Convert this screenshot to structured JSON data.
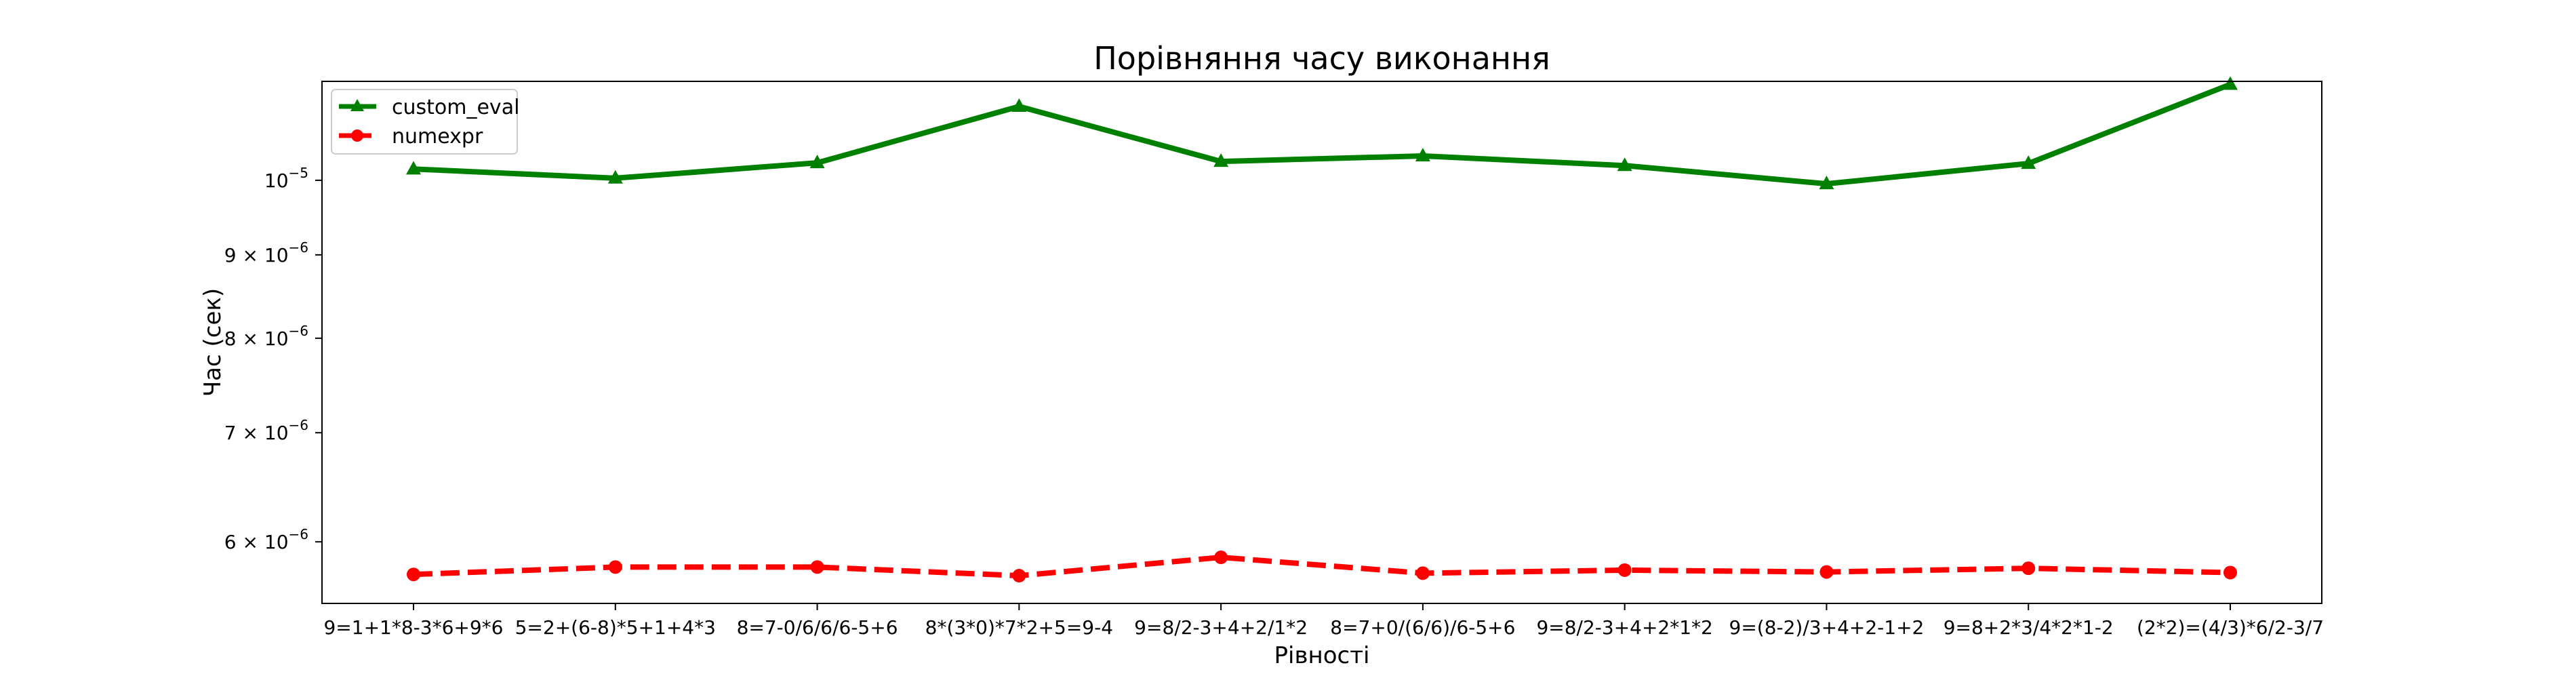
{
  "chart_data": {
    "type": "line",
    "title": "Порівняння часу виконання",
    "xlabel": "Рівності",
    "ylabel": "Час (сек)",
    "yscale": "log",
    "ylim": [
      5.5e-06,
      1.15e-05
    ],
    "grid": false,
    "legend_position": "top-left",
    "categories": [
      "9=1+1*8-3*6+9*6",
      "5=2+(6-8)*5+1+4*3",
      "8=7-0/6/6/6-5+6",
      "8*(3*0)*7*2+5=9-4",
      "9=8/2-3+4+2/1*2",
      "8=7+0/(6/6)/6-5+6",
      "9=8/2-3+4+2*1*2",
      "9=(8-2)/3+4+2-1+2",
      "9=8+2*3/4*2*1-2",
      "(2*2)=(4/3)*6/2-3/7"
    ],
    "series": [
      {
        "name": "custom_eval",
        "color": "#008000",
        "marker": "triangle",
        "linestyle": "solid",
        "values": [
          1.016e-05,
          1.003e-05,
          1.025e-05,
          1.11e-05,
          1.027e-05,
          1.035e-05,
          1.021e-05,
          9.95e-06,
          1.024e-05,
          1.145e-05
        ]
      },
      {
        "name": "numexpr",
        "color": "#ff0000",
        "marker": "circle",
        "linestyle": "dashed",
        "values": [
          5.73e-06,
          5.79e-06,
          5.79e-06,
          5.72e-06,
          5.87e-06,
          5.74e-06,
          5.765e-06,
          5.75e-06,
          5.78e-06,
          5.745e-06
        ]
      }
    ],
    "yticks": [
      {
        "value": 6e-06,
        "mantissa": "6",
        "base": "10",
        "exp": "−6"
      },
      {
        "value": 7e-06,
        "mantissa": "7",
        "base": "10",
        "exp": "−6"
      },
      {
        "value": 8e-06,
        "mantissa": "8",
        "base": "10",
        "exp": "−6"
      },
      {
        "value": 9e-06,
        "mantissa": "9",
        "base": "10",
        "exp": "−6"
      },
      {
        "value": 1e-05,
        "mantissa": "",
        "base": "10",
        "exp": "−5"
      }
    ]
  }
}
